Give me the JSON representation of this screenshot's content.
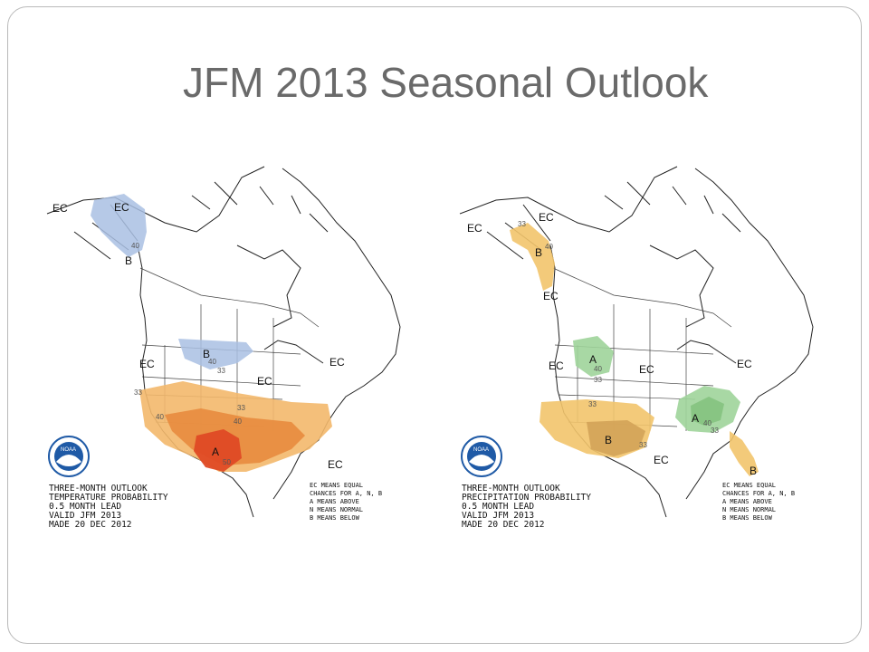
{
  "title": "JFM 2013 Seasonal Outlook",
  "temperature_map": {
    "labels": {
      "ec_alaska_w": "EC",
      "ec_alaska_e": "EC",
      "b_alaska": "B",
      "c40_alaska": "40",
      "b_north": "B",
      "c40_north": "40",
      "c33_north": "33",
      "ec_west": "EC",
      "ec_central": "EC",
      "ec_east": "EC",
      "ec_florida": "EC",
      "c33_sw": "33",
      "c33_south": "33",
      "c40_sw": "40",
      "c40_south": "40",
      "a_texas": "A",
      "c50": "50"
    },
    "caption": [
      "THREE-MONTH OUTLOOK",
      "TEMPERATURE PROBABILITY",
      "0.5 MONTH LEAD",
      "VALID JFM 2013",
      "MADE 20 DEC 2012"
    ],
    "legend": [
      "EC MEANS EQUAL",
      "CHANCES FOR A, N, B",
      "A MEANS ABOVE",
      "N MEANS NORMAL",
      "B MEANS BELOW"
    ]
  },
  "precipitation_map": {
    "labels": {
      "ec_alaska_w": "EC",
      "ec_alaska_e": "EC",
      "b_alaska": "B",
      "c33_alaska": "33",
      "c40_alaska": "40",
      "ec_bc": "EC",
      "a_north": "A",
      "c40_north": "40",
      "c33_north": "33",
      "ec_west": "EC",
      "ec_central": "EC",
      "ec_east": "EC",
      "a_southeast": "A",
      "c40_southeast": "40",
      "c33_southeast": "33",
      "c33_sw": "33",
      "b_southwest": "B",
      "c33_texas": "33",
      "ec_gulf": "EC",
      "b_florida": "B"
    },
    "caption": [
      "THREE-MONTH OUTLOOK",
      "PRECIPITATION PROBABILITY",
      "0.5 MONTH LEAD",
      "VALID JFM 2013",
      "MADE 20 DEC 2012"
    ],
    "legend": [
      "EC MEANS EQUAL",
      "CHANCES FOR A, N, B",
      "A MEANS ABOVE",
      "N MEANS NORMAL",
      "B MEANS BELOW"
    ]
  },
  "colors": {
    "below_temp": "#a9bfe3",
    "above_temp_33": "#f3b86b",
    "above_temp_40": "#e88b3e",
    "above_temp_50": "#df4a25",
    "above_precip": "#9ed49a",
    "below_precip_33": "#f2c46b",
    "below_precip_40": "#d4a45a",
    "noaa_blue": "#1f5aa6"
  },
  "icons": [
    "noaa-logo-icon"
  ]
}
